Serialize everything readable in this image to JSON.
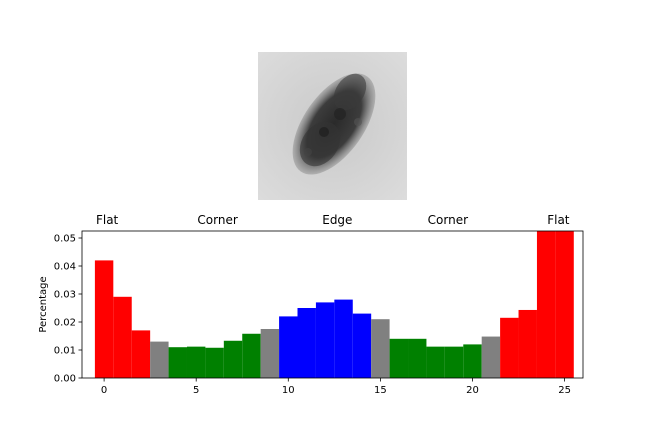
{
  "image_panel": {
    "description_icon": "lesion-image-icon"
  },
  "chart_data": {
    "type": "bar",
    "ylabel": "Percentage",
    "xlabel": "",
    "xlim": [
      -1.2,
      26
    ],
    "ylim": [
      0,
      0.0525
    ],
    "xticks": [
      0,
      5,
      10,
      15,
      20,
      25
    ],
    "xtick_labels": [
      "0",
      "5",
      "10",
      "15",
      "20",
      "25"
    ],
    "yticks": [
      0.0,
      0.01,
      0.02,
      0.03,
      0.04,
      0.05
    ],
    "ytick_labels": [
      "0.00",
      "0.01",
      "0.02",
      "0.03",
      "0.04",
      "0.05"
    ],
    "region_labels": [
      {
        "text": "Flat",
        "x": 0
      },
      {
        "text": "Corner",
        "x": 6
      },
      {
        "text": "Edge",
        "x": 12.5
      },
      {
        "text": "Corner",
        "x": 18.5
      },
      {
        "text": "Flat",
        "x": 24.5
      }
    ],
    "bars": [
      {
        "x": 0,
        "value": 0.042,
        "color": "#ff0000"
      },
      {
        "x": 1,
        "value": 0.029,
        "color": "#ff0000"
      },
      {
        "x": 2,
        "value": 0.017,
        "color": "#ff0000"
      },
      {
        "x": 3,
        "value": 0.013,
        "color": "#808080"
      },
      {
        "x": 4,
        "value": 0.011,
        "color": "#008000"
      },
      {
        "x": 5,
        "value": 0.0112,
        "color": "#008000"
      },
      {
        "x": 6,
        "value": 0.0108,
        "color": "#008000"
      },
      {
        "x": 7,
        "value": 0.0133,
        "color": "#008000"
      },
      {
        "x": 8,
        "value": 0.0158,
        "color": "#008000"
      },
      {
        "x": 9,
        "value": 0.0175,
        "color": "#808080"
      },
      {
        "x": 10,
        "value": 0.022,
        "color": "#0000ff"
      },
      {
        "x": 11,
        "value": 0.025,
        "color": "#0000ff"
      },
      {
        "x": 12,
        "value": 0.027,
        "color": "#0000ff"
      },
      {
        "x": 13,
        "value": 0.028,
        "color": "#0000ff"
      },
      {
        "x": 14,
        "value": 0.023,
        "color": "#0000ff"
      },
      {
        "x": 15,
        "value": 0.021,
        "color": "#808080"
      },
      {
        "x": 16,
        "value": 0.014,
        "color": "#008000"
      },
      {
        "x": 17,
        "value": 0.014,
        "color": "#008000"
      },
      {
        "x": 18,
        "value": 0.0112,
        "color": "#008000"
      },
      {
        "x": 19,
        "value": 0.0112,
        "color": "#008000"
      },
      {
        "x": 20,
        "value": 0.012,
        "color": "#008000"
      },
      {
        "x": 21,
        "value": 0.0148,
        "color": "#808080"
      },
      {
        "x": 22,
        "value": 0.0215,
        "color": "#ff0000"
      },
      {
        "x": 23,
        "value": 0.0243,
        "color": "#ff0000"
      },
      {
        "x": 24,
        "value": 0.0525,
        "color": "#ff0000"
      },
      {
        "x": 25,
        "value": 0.0525,
        "color": "#ff0000"
      }
    ]
  }
}
